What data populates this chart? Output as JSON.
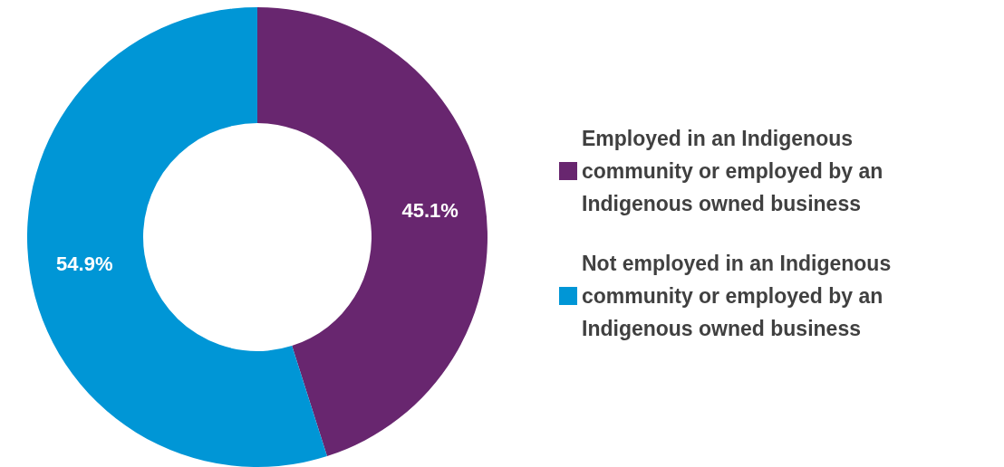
{
  "chart_data": {
    "type": "donut",
    "categories": [
      "Employed in an Indigenous community or employed by an Indigenous owned business",
      "Not employed in an Indigenous community or employed by an Indigenous owned business"
    ],
    "values": [
      45.1,
      54.9
    ],
    "colors": [
      "#68266f",
      "#0096d6"
    ],
    "value_labels": [
      "45.1%",
      "54.9%"
    ],
    "legend": "right"
  }
}
